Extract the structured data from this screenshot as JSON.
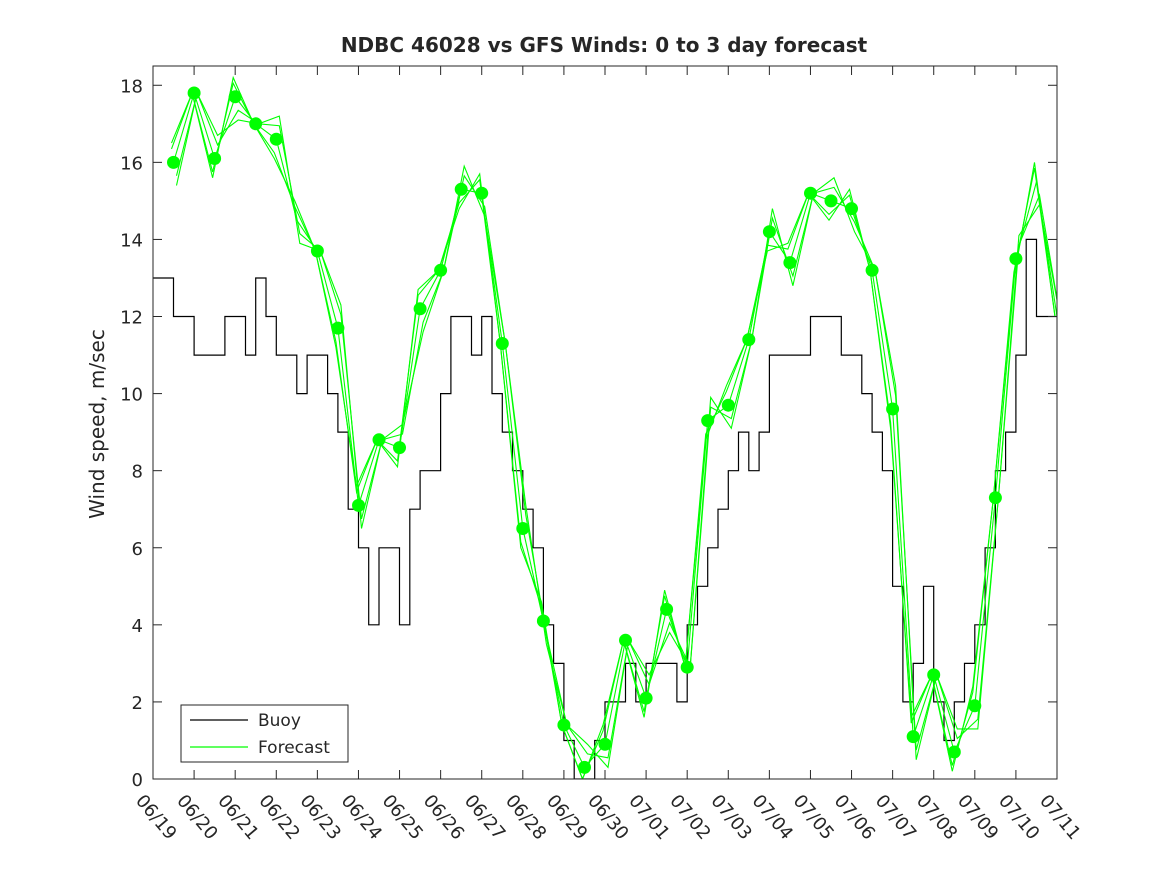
{
  "chart_data": {
    "type": "line",
    "title": "NDBC 46028 vs GFS Winds: 0 to 3 day forecast",
    "xlabel": "",
    "ylabel": "Wind speed, m/sec",
    "x_unit": "date (MM/DD)",
    "xlim": [
      "06/19",
      "07/11"
    ],
    "ylim": [
      0,
      18.5
    ],
    "x_tick_labels": [
      "06/19",
      "06/20",
      "06/21",
      "06/22",
      "06/23",
      "06/24",
      "06/25",
      "06/26",
      "06/27",
      "06/28",
      "06/29",
      "06/30",
      "07/01",
      "07/02",
      "07/03",
      "07/04",
      "07/05",
      "07/06",
      "07/07",
      "07/08",
      "07/09",
      "07/10",
      "07/11"
    ],
    "y_ticks": [
      0,
      2,
      4,
      6,
      8,
      10,
      12,
      14,
      16,
      18
    ],
    "y_tick_labels": [
      "0",
      "2",
      "4",
      "6",
      "8",
      "10",
      "12",
      "14",
      "16",
      "18"
    ],
    "grid": false,
    "legend_position": "bottom-left",
    "colors": {
      "buoy": "#000000",
      "forecast": "#00ff00",
      "axes": "#262626"
    },
    "series": [
      {
        "name": "Buoy",
        "style": "step line",
        "points": [
          [
            "06/19",
            13
          ],
          [
            "06/19 06h",
            13
          ],
          [
            "06/19 12h",
            12
          ],
          [
            "06/19 18h",
            12
          ],
          [
            "06/20",
            11
          ],
          [
            "06/20 06h",
            11
          ],
          [
            "06/20 12h",
            11
          ],
          [
            "06/20 18h",
            12
          ],
          [
            "06/21",
            12
          ],
          [
            "06/21 06h",
            11
          ],
          [
            "06/21 12h",
            13
          ],
          [
            "06/21 18h",
            12
          ],
          [
            "06/22",
            11
          ],
          [
            "06/22 06h",
            11
          ],
          [
            "06/22 12h",
            10
          ],
          [
            "06/22 18h",
            11
          ],
          [
            "06/23",
            11
          ],
          [
            "06/23 06h",
            10
          ],
          [
            "06/23 12h",
            9
          ],
          [
            "06/23 18h",
            7
          ],
          [
            "06/24",
            6
          ],
          [
            "06/24 06h",
            4
          ],
          [
            "06/24 12h",
            6
          ],
          [
            "06/24 18h",
            6
          ],
          [
            "06/25",
            4
          ],
          [
            "06/25 06h",
            7
          ],
          [
            "06/25 12h",
            8
          ],
          [
            "06/25 18h",
            8
          ],
          [
            "06/26",
            10
          ],
          [
            "06/26 06h",
            12
          ],
          [
            "06/26 12h",
            12
          ],
          [
            "06/26 18h",
            11
          ],
          [
            "06/27",
            12
          ],
          [
            "06/27 06h",
            10
          ],
          [
            "06/27 12h",
            9
          ],
          [
            "06/27 18h",
            8
          ],
          [
            "06/28",
            7
          ],
          [
            "06/28 06h",
            6
          ],
          [
            "06/28 12h",
            4
          ],
          [
            "06/28 18h",
            3
          ],
          [
            "06/29",
            1
          ],
          [
            "06/29 06h",
            0
          ],
          [
            "06/29 12h",
            0
          ],
          [
            "06/29 18h",
            1
          ],
          [
            "06/30",
            2
          ],
          [
            "06/30 06h",
            2
          ],
          [
            "06/30 12h",
            3
          ],
          [
            "06/30 18h",
            2
          ],
          [
            "07/01",
            3
          ],
          [
            "07/01 06h",
            3
          ],
          [
            "07/01 12h",
            3
          ],
          [
            "07/01 18h",
            2
          ],
          [
            "07/02",
            4
          ],
          [
            "07/02 06h",
            5
          ],
          [
            "07/02 12h",
            6
          ],
          [
            "07/02 18h",
            7
          ],
          [
            "07/03",
            8
          ],
          [
            "07/03 06h",
            9
          ],
          [
            "07/03 12h",
            8
          ],
          [
            "07/03 18h",
            9
          ],
          [
            "07/04",
            11
          ],
          [
            "07/04 06h",
            11
          ],
          [
            "07/04 12h",
            11
          ],
          [
            "07/04 18h",
            11
          ],
          [
            "07/05",
            12
          ],
          [
            "07/05 06h",
            12
          ],
          [
            "07/05 12h",
            12
          ],
          [
            "07/05 18h",
            11
          ],
          [
            "07/06",
            11
          ],
          [
            "07/06 06h",
            10
          ],
          [
            "07/06 12h",
            9
          ],
          [
            "07/06 18h",
            8
          ],
          [
            "07/07",
            5
          ],
          [
            "07/07 06h",
            2
          ],
          [
            "07/07 12h",
            3
          ],
          [
            "07/07 18h",
            5
          ],
          [
            "07/08",
            2
          ],
          [
            "07/08 06h",
            1
          ],
          [
            "07/08 12h",
            2
          ],
          [
            "07/08 18h",
            3
          ],
          [
            "07/09",
            4
          ],
          [
            "07/09 06h",
            6
          ],
          [
            "07/09 12h",
            8
          ],
          [
            "07/09 18h",
            9
          ],
          [
            "07/10",
            11
          ],
          [
            "07/10 06h",
            14
          ],
          [
            "07/10 12h",
            12
          ],
          [
            "07/10 18h",
            12
          ]
        ]
      },
      {
        "name": "Forecast",
        "style": "multiple overlapping lines with circle markers at 00h",
        "points": [
          [
            "06/19 12h",
            16.0
          ],
          [
            "06/20",
            17.8
          ],
          [
            "06/20 12h",
            16.1
          ],
          [
            "06/21",
            17.7
          ],
          [
            "06/21 12h",
            17.0
          ],
          [
            "06/22",
            16.6
          ],
          [
            "06/22 12h",
            14.5
          ],
          [
            "06/23",
            13.7
          ],
          [
            "06/23 12h",
            11.7
          ],
          [
            "06/24",
            7.1
          ],
          [
            "06/24 12h",
            8.8
          ],
          [
            "06/25",
            8.6
          ],
          [
            "06/25 12h",
            12.2
          ],
          [
            "06/26",
            13.2
          ],
          [
            "06/26 12h",
            15.3
          ],
          [
            "06/27",
            15.2
          ],
          [
            "06/27 12h",
            11.3
          ],
          [
            "06/28",
            6.5
          ],
          [
            "06/28 12h",
            4.1
          ],
          [
            "06/29",
            1.4
          ],
          [
            "06/29 12h",
            0.3
          ],
          [
            "06/30",
            0.9
          ],
          [
            "06/30 12h",
            3.6
          ],
          [
            "07/01",
            2.1
          ],
          [
            "07/01 12h",
            4.4
          ],
          [
            "07/02",
            2.9
          ],
          [
            "07/02 12h",
            9.3
          ],
          [
            "07/03",
            9.7
          ],
          [
            "07/03 12h",
            11.4
          ],
          [
            "07/04",
            14.2
          ],
          [
            "07/04 12h",
            13.4
          ],
          [
            "07/05",
            15.2
          ],
          [
            "07/05 12h",
            15.0
          ],
          [
            "07/06",
            14.8
          ],
          [
            "07/06 12h",
            13.2
          ],
          [
            "07/07",
            9.6
          ],
          [
            "07/07 12h",
            1.1
          ],
          [
            "07/08",
            2.7
          ],
          [
            "07/08 12h",
            0.7
          ],
          [
            "07/09",
            1.9
          ],
          [
            "07/09 12h",
            7.3
          ],
          [
            "07/10",
            13.5
          ],
          [
            "07/10 12h",
            15.5
          ],
          [
            "07/11",
            12.0
          ]
        ],
        "markers": [
          [
            "06/19 12h",
            16.0
          ],
          [
            "06/20",
            17.8
          ],
          [
            "06/20 12h",
            16.1
          ],
          [
            "06/21",
            17.7
          ],
          [
            "06/21 12h",
            17.0
          ],
          [
            "06/22",
            16.6
          ],
          [
            "06/23",
            13.7
          ],
          [
            "06/23 12h",
            11.7
          ],
          [
            "06/24",
            7.1
          ],
          [
            "06/24 12h",
            8.8
          ],
          [
            "06/25",
            8.6
          ],
          [
            "06/25 12h",
            12.2
          ],
          [
            "06/26",
            13.2
          ],
          [
            "06/26 12h",
            15.3
          ],
          [
            "06/27",
            15.2
          ],
          [
            "06/27 12h",
            11.3
          ],
          [
            "06/28",
            6.5
          ],
          [
            "06/28 12h",
            4.1
          ],
          [
            "06/29",
            1.4
          ],
          [
            "06/29 12h",
            0.3
          ],
          [
            "06/30",
            0.9
          ],
          [
            "06/30 12h",
            3.6
          ],
          [
            "07/01",
            2.1
          ],
          [
            "07/01 12h",
            4.4
          ],
          [
            "07/02",
            2.9
          ],
          [
            "07/02 12h",
            9.3
          ],
          [
            "07/03",
            9.7
          ],
          [
            "07/03 12h",
            11.4
          ],
          [
            "07/04",
            14.2
          ],
          [
            "07/04 12h",
            13.4
          ],
          [
            "07/05",
            15.2
          ],
          [
            "07/05 12h",
            15.0
          ],
          [
            "07/06",
            14.8
          ],
          [
            "07/06 12h",
            13.2
          ],
          [
            "07/07",
            9.6
          ],
          [
            "07/07 12h",
            1.1
          ],
          [
            "07/08",
            2.7
          ],
          [
            "07/08 12h",
            0.7
          ],
          [
            "07/09",
            1.9
          ],
          [
            "07/09 12h",
            7.3
          ],
          [
            "07/10",
            13.5
          ]
        ]
      }
    ]
  }
}
